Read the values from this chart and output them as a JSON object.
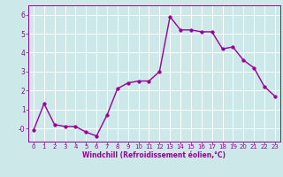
{
  "x": [
    0,
    1,
    2,
    3,
    4,
    5,
    6,
    7,
    8,
    9,
    10,
    11,
    12,
    13,
    14,
    15,
    16,
    17,
    18,
    19,
    20,
    21,
    22,
    23
  ],
  "y": [
    -0.1,
    1.3,
    0.2,
    0.1,
    0.1,
    -0.2,
    -0.4,
    0.7,
    2.1,
    2.4,
    2.5,
    2.5,
    3.0,
    5.9,
    5.2,
    5.2,
    5.1,
    5.1,
    4.2,
    4.3,
    3.6,
    3.2,
    2.2,
    1.7
  ],
  "line_color": "#990099",
  "marker": "o",
  "markersize": 2.5,
  "linewidth": 1.0,
  "xlabel": "Windchill (Refroidissement éolien,°C)",
  "xlim": [
    -0.5,
    23.5
  ],
  "ylim": [
    -0.7,
    6.5
  ],
  "yticks": [
    0,
    1,
    2,
    3,
    4,
    5,
    6
  ],
  "ytick_labels": [
    "-0",
    "1",
    "2",
    "3",
    "4",
    "5",
    "6"
  ],
  "xticks": [
    0,
    1,
    2,
    3,
    4,
    5,
    6,
    7,
    8,
    9,
    10,
    11,
    12,
    13,
    14,
    15,
    16,
    17,
    18,
    19,
    20,
    21,
    22,
    23
  ],
  "background_color": "#cce8e8",
  "grid_color": "#ffffff",
  "tick_color": "#990099",
  "label_color": "#990099"
}
